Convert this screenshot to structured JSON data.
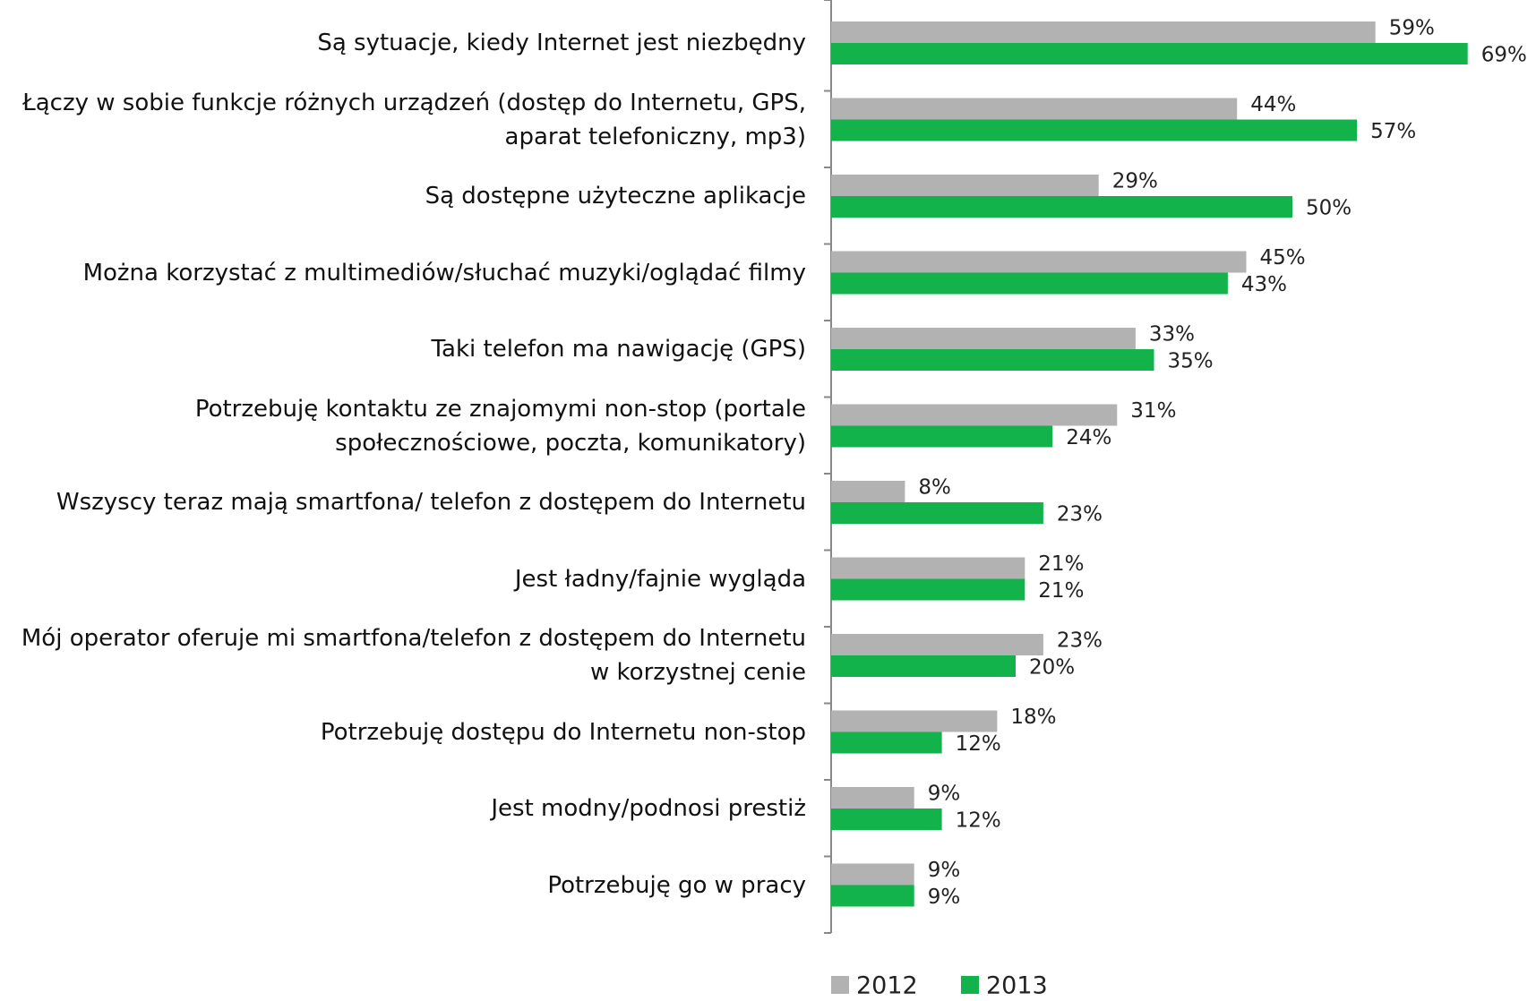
{
  "chart_data": {
    "type": "hbar",
    "categories": [
      "Są sytuacje, kiedy Internet jest niezbędny",
      "Łączy w sobie funkcje różnych urządzeń (dostęp do Internetu, GPS, aparat telefoniczny, mp3)",
      "Są dostępne użyteczne aplikacje",
      "Można korzystać z multimediów/słuchać muzyki/oglądać filmy",
      "Taki telefon ma nawigację (GPS)",
      "Potrzebuję kontaktu ze znajomymi non-stop (portale społecznościowe, poczta, komunikatory)",
      "Wszyscy teraz mają smartfona/ telefon z dostępem do Internetu",
      "Jest ładny/fajnie wygląda",
      "Mój operator oferuje mi smartfona/telefon z dostępem do Internetu w korzystnej cenie",
      "Potrzebuję dostępu do Internetu non-stop",
      "Jest modny/podnosi prestiż",
      "Potrzebuję go w pracy"
    ],
    "series": [
      {
        "name": "2012",
        "color": "#b2b2b2",
        "values": [
          59,
          44,
          29,
          45,
          33,
          31,
          8,
          21,
          23,
          18,
          9,
          9
        ],
        "value_labels": [
          "59%",
          "44%",
          "29%",
          "45%",
          "33%",
          "31%",
          "8%",
          "21%",
          "23%",
          "18%",
          "9%",
          "9%"
        ]
      },
      {
        "name": "2013",
        "color": "#12b34a",
        "values": [
          69,
          57,
          50,
          43,
          35,
          24,
          23,
          21,
          20,
          12,
          12,
          9
        ],
        "value_labels": [
          "69%",
          "57%",
          "50%",
          "43%",
          "35%",
          "24%",
          "23%",
          "21%",
          "20%",
          "12%",
          "12%",
          "9%"
        ]
      }
    ],
    "legend": "bottom"
  }
}
